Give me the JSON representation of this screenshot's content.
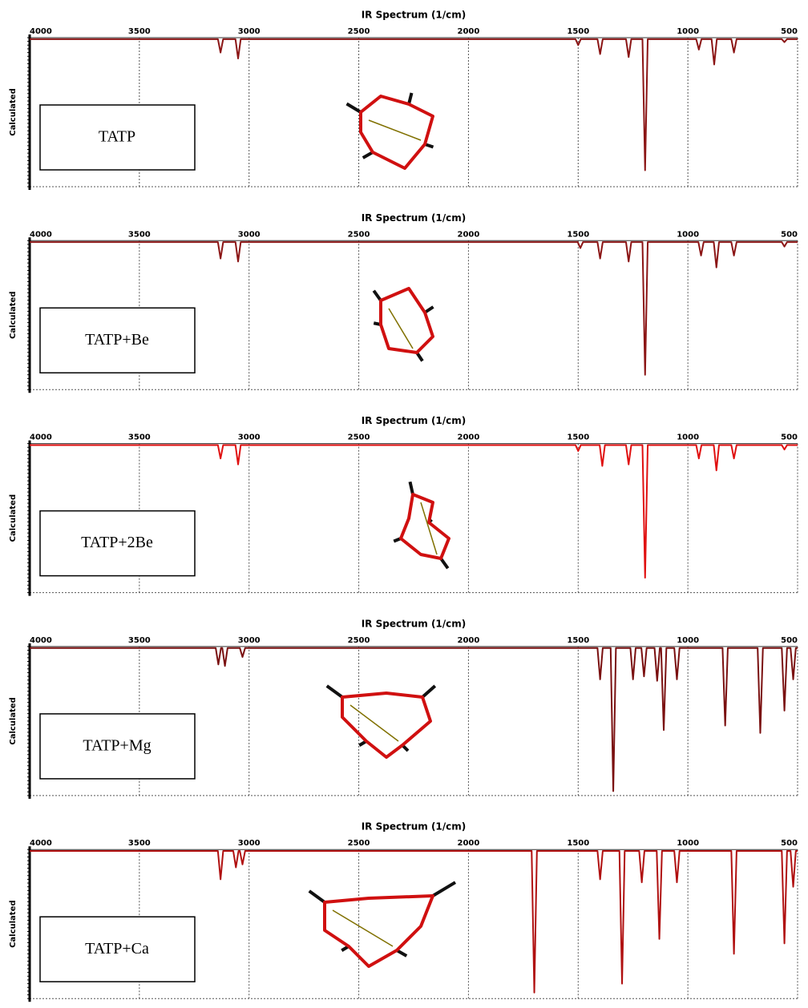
{
  "chart_data": [
    {
      "type": "line",
      "title": "IR Spectrum (1/cm)",
      "ylabel": "Calculated",
      "annotation": "TATP",
      "color": "#8b1515",
      "grid": true,
      "xlim": [
        4000,
        500
      ],
      "xticks": [
        4000,
        3500,
        3000,
        2500,
        2000,
        1500,
        1000,
        500
      ],
      "ylim": [
        0,
        1
      ],
      "x": [
        4000,
        3142,
        3130,
        3118,
        3062,
        3050,
        3038,
        1512,
        1500,
        1488,
        1412,
        1400,
        1388,
        1282,
        1270,
        1258,
        1207,
        1195,
        1183,
        962,
        950,
        938,
        892,
        880,
        868,
        802,
        790,
        778,
        572,
        560,
        548,
        500
      ],
      "values": [
        0.99,
        0.99,
        0.9,
        0.99,
        0.99,
        0.86,
        0.99,
        0.99,
        0.95,
        0.99,
        0.99,
        0.89,
        0.99,
        0.99,
        0.87,
        0.99,
        0.99,
        0.11,
        0.99,
        0.99,
        0.92,
        0.99,
        0.99,
        0.82,
        0.99,
        0.99,
        0.9,
        0.99,
        0.99,
        0.97,
        0.99,
        0.99
      ]
    },
    {
      "type": "line",
      "title": "IR Spectrum (1/cm)",
      "ylabel": "Calculated",
      "annotation": "TATP+Be",
      "color": "#8b1515",
      "grid": true,
      "xlim": [
        4000,
        500
      ],
      "xticks": [
        4000,
        3500,
        3000,
        2500,
        2000,
        1500,
        1000,
        500
      ],
      "ylim": [
        0,
        1
      ],
      "x": [
        4000,
        3142,
        3130,
        3118,
        3062,
        3050,
        3038,
        1502,
        1490,
        1478,
        1412,
        1400,
        1388,
        1282,
        1270,
        1258,
        1207,
        1195,
        1183,
        952,
        940,
        928,
        882,
        870,
        858,
        802,
        790,
        778,
        572,
        560,
        548,
        500
      ],
      "values": [
        0.99,
        0.99,
        0.88,
        0.99,
        0.99,
        0.86,
        0.99,
        0.99,
        0.95,
        0.99,
        0.99,
        0.88,
        0.99,
        0.99,
        0.86,
        0.99,
        0.99,
        0.1,
        0.99,
        0.99,
        0.9,
        0.99,
        0.99,
        0.82,
        0.99,
        0.99,
        0.9,
        0.99,
        0.99,
        0.96,
        0.99,
        0.99
      ]
    },
    {
      "type": "line",
      "title": "IR Spectrum (1/cm)",
      "ylabel": "Calculated",
      "annotation": "TATP+2Be",
      "color": "#e01010",
      "grid": true,
      "xlim": [
        4000,
        500
      ],
      "xticks": [
        4000,
        3500,
        3000,
        2500,
        2000,
        1500,
        1000,
        500
      ],
      "ylim": [
        0,
        1
      ],
      "x": [
        4000,
        3142,
        3130,
        3118,
        3062,
        3050,
        3038,
        1512,
        1500,
        1488,
        1402,
        1390,
        1378,
        1282,
        1270,
        1258,
        1207,
        1195,
        1183,
        962,
        950,
        938,
        882,
        870,
        858,
        802,
        790,
        778,
        572,
        560,
        548,
        500
      ],
      "values": [
        0.99,
        0.99,
        0.9,
        0.99,
        0.99,
        0.86,
        0.99,
        0.99,
        0.95,
        0.99,
        0.99,
        0.85,
        0.99,
        0.99,
        0.86,
        0.99,
        0.99,
        0.1,
        0.99,
        0.99,
        0.9,
        0.99,
        0.99,
        0.82,
        0.99,
        0.99,
        0.9,
        0.99,
        0.99,
        0.96,
        0.99,
        0.99
      ]
    },
    {
      "type": "line",
      "title": "IR Spectrum (1/cm)",
      "ylabel": "Calculated",
      "annotation": "TATP+Mg",
      "color": "#7a1010",
      "grid": true,
      "xlim": [
        4000,
        500
      ],
      "xticks": [
        4000,
        3500,
        3000,
        2500,
        2000,
        1500,
        1000,
        500
      ],
      "ylim": [
        0,
        1
      ],
      "x": [
        4000,
        3152,
        3140,
        3128,
        3122,
        3110,
        3098,
        3042,
        3030,
        3018,
        1412,
        1400,
        1388,
        1352,
        1340,
        1328,
        1262,
        1250,
        1238,
        1212,
        1200,
        1188,
        1152,
        1140,
        1128,
        1122,
        1110,
        1098,
        1062,
        1050,
        1038,
        842,
        830,
        818,
        682,
        670,
        658,
        572,
        560,
        548,
        532,
        520,
        508,
        500
      ],
      "values": [
        0.99,
        0.99,
        0.88,
        0.99,
        0.99,
        0.87,
        0.99,
        0.99,
        0.93,
        0.99,
        0.99,
        0.78,
        0.99,
        0.99,
        0.03,
        0.99,
        0.99,
        0.78,
        0.99,
        0.99,
        0.8,
        0.99,
        0.99,
        0.77,
        0.99,
        0.99,
        0.44,
        0.99,
        0.99,
        0.78,
        0.99,
        0.99,
        0.47,
        0.99,
        0.99,
        0.42,
        0.99,
        0.99,
        0.57,
        0.99,
        0.99,
        0.78,
        0.99,
        0.99
      ]
    },
    {
      "type": "line",
      "title": "IR Spectrum (1/cm)",
      "ylabel": "Calculated",
      "annotation": "TATP+Ca",
      "color": "#b01010",
      "grid": true,
      "xlim": [
        4000,
        500
      ],
      "xticks": [
        4000,
        3500,
        3000,
        2500,
        2000,
        1500,
        1000,
        500
      ],
      "ylim": [
        0,
        1
      ],
      "x": [
        4000,
        3142,
        3130,
        3118,
        3072,
        3060,
        3048,
        3042,
        3030,
        3018,
        1712,
        1700,
        1688,
        1412,
        1400,
        1388,
        1312,
        1300,
        1288,
        1222,
        1210,
        1198,
        1142,
        1130,
        1118,
        1062,
        1050,
        1038,
        802,
        790,
        778,
        572,
        560,
        548,
        532,
        520,
        508,
        500
      ],
      "values": [
        0.99,
        0.99,
        0.8,
        0.99,
        0.99,
        0.88,
        0.99,
        0.99,
        0.9,
        0.99,
        0.99,
        0.04,
        0.99,
        0.99,
        0.8,
        0.99,
        0.99,
        0.1,
        0.99,
        0.99,
        0.78,
        0.99,
        0.99,
        0.4,
        0.99,
        0.99,
        0.78,
        0.99,
        0.99,
        0.3,
        0.99,
        0.99,
        0.37,
        0.99,
        0.99,
        0.75,
        0.99,
        0.99
      ]
    }
  ]
}
